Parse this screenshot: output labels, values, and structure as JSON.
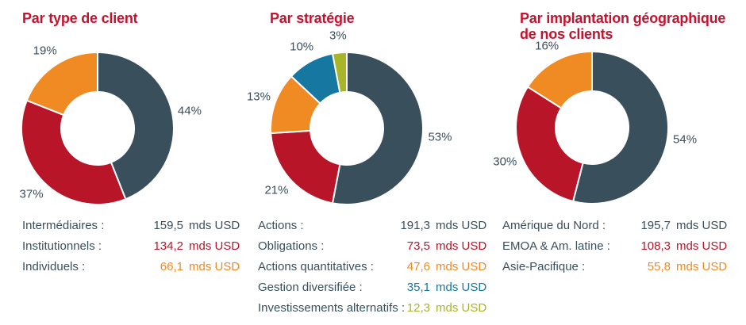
{
  "page_background": "#ffffff",
  "colors": {
    "slate": "#3a4f5c",
    "red": "#b91528",
    "orange": "#f08a23",
    "teal": "#1678a0",
    "olive": "#a8b528",
    "title_red": "#c3132f",
    "text": "#3a4f5c"
  },
  "chart_data": [
    {
      "type": "pie",
      "donut": true,
      "start_angle": "top",
      "direction": "clockwise",
      "legend_position": "below",
      "title": "Par type de client",
      "slices": [
        {
          "label": "Intermédiaires :",
          "pct": 44,
          "pct_label": "44%",
          "value": "159,5",
          "unit": "mds USD",
          "color": "slate"
        },
        {
          "label": "Institutionnels :",
          "pct": 37,
          "pct_label": "37%",
          "value": "134,2",
          "unit": "mds USD",
          "color": "red"
        },
        {
          "label": "Individuels :",
          "pct": 19,
          "pct_label": "19%",
          "value": "66,1",
          "unit": "mds USD",
          "color": "orange"
        }
      ]
    },
    {
      "type": "pie",
      "donut": true,
      "start_angle": "top",
      "direction": "clockwise",
      "legend_position": "below",
      "title": "Par stratégie",
      "slices": [
        {
          "label": "Actions :",
          "pct": 53,
          "pct_label": "53%",
          "value": "191,3",
          "unit": "mds USD",
          "color": "slate"
        },
        {
          "label": "Obligations :",
          "pct": 21,
          "pct_label": "21%",
          "value": "73,5",
          "unit": "mds USD",
          "color": "red"
        },
        {
          "label": "Actions quantitatives :",
          "pct": 13,
          "pct_label": "13%",
          "value": "47,6",
          "unit": "mds USD",
          "color": "orange"
        },
        {
          "label": "Gestion diversifiée :",
          "pct": 10,
          "pct_label": "10%",
          "value": "35,1",
          "unit": "mds USD",
          "color": "teal"
        },
        {
          "label": "Investissements alternatifs :",
          "pct": 3,
          "pct_label": "3%",
          "value": "12,3",
          "unit": "mds USD",
          "color": "olive"
        }
      ]
    },
    {
      "type": "pie",
      "donut": true,
      "start_angle": "top",
      "direction": "clockwise",
      "legend_position": "below",
      "title": "Par implantation géographique de nos clients",
      "slices": [
        {
          "label": "Amérique du Nord :",
          "pct": 54,
          "pct_label": "54%",
          "value": "195,7",
          "unit": "mds USD",
          "color": "slate"
        },
        {
          "label": "EMOA & Am. latine :",
          "pct": 30,
          "pct_label": "30%",
          "value": "108,3",
          "unit": "mds USD",
          "color": "red"
        },
        {
          "label": "Asie-Pacifique :",
          "pct": 16,
          "pct_label": "16%",
          "value": "55,8",
          "unit": "mds USD",
          "color": "orange"
        }
      ]
    }
  ]
}
